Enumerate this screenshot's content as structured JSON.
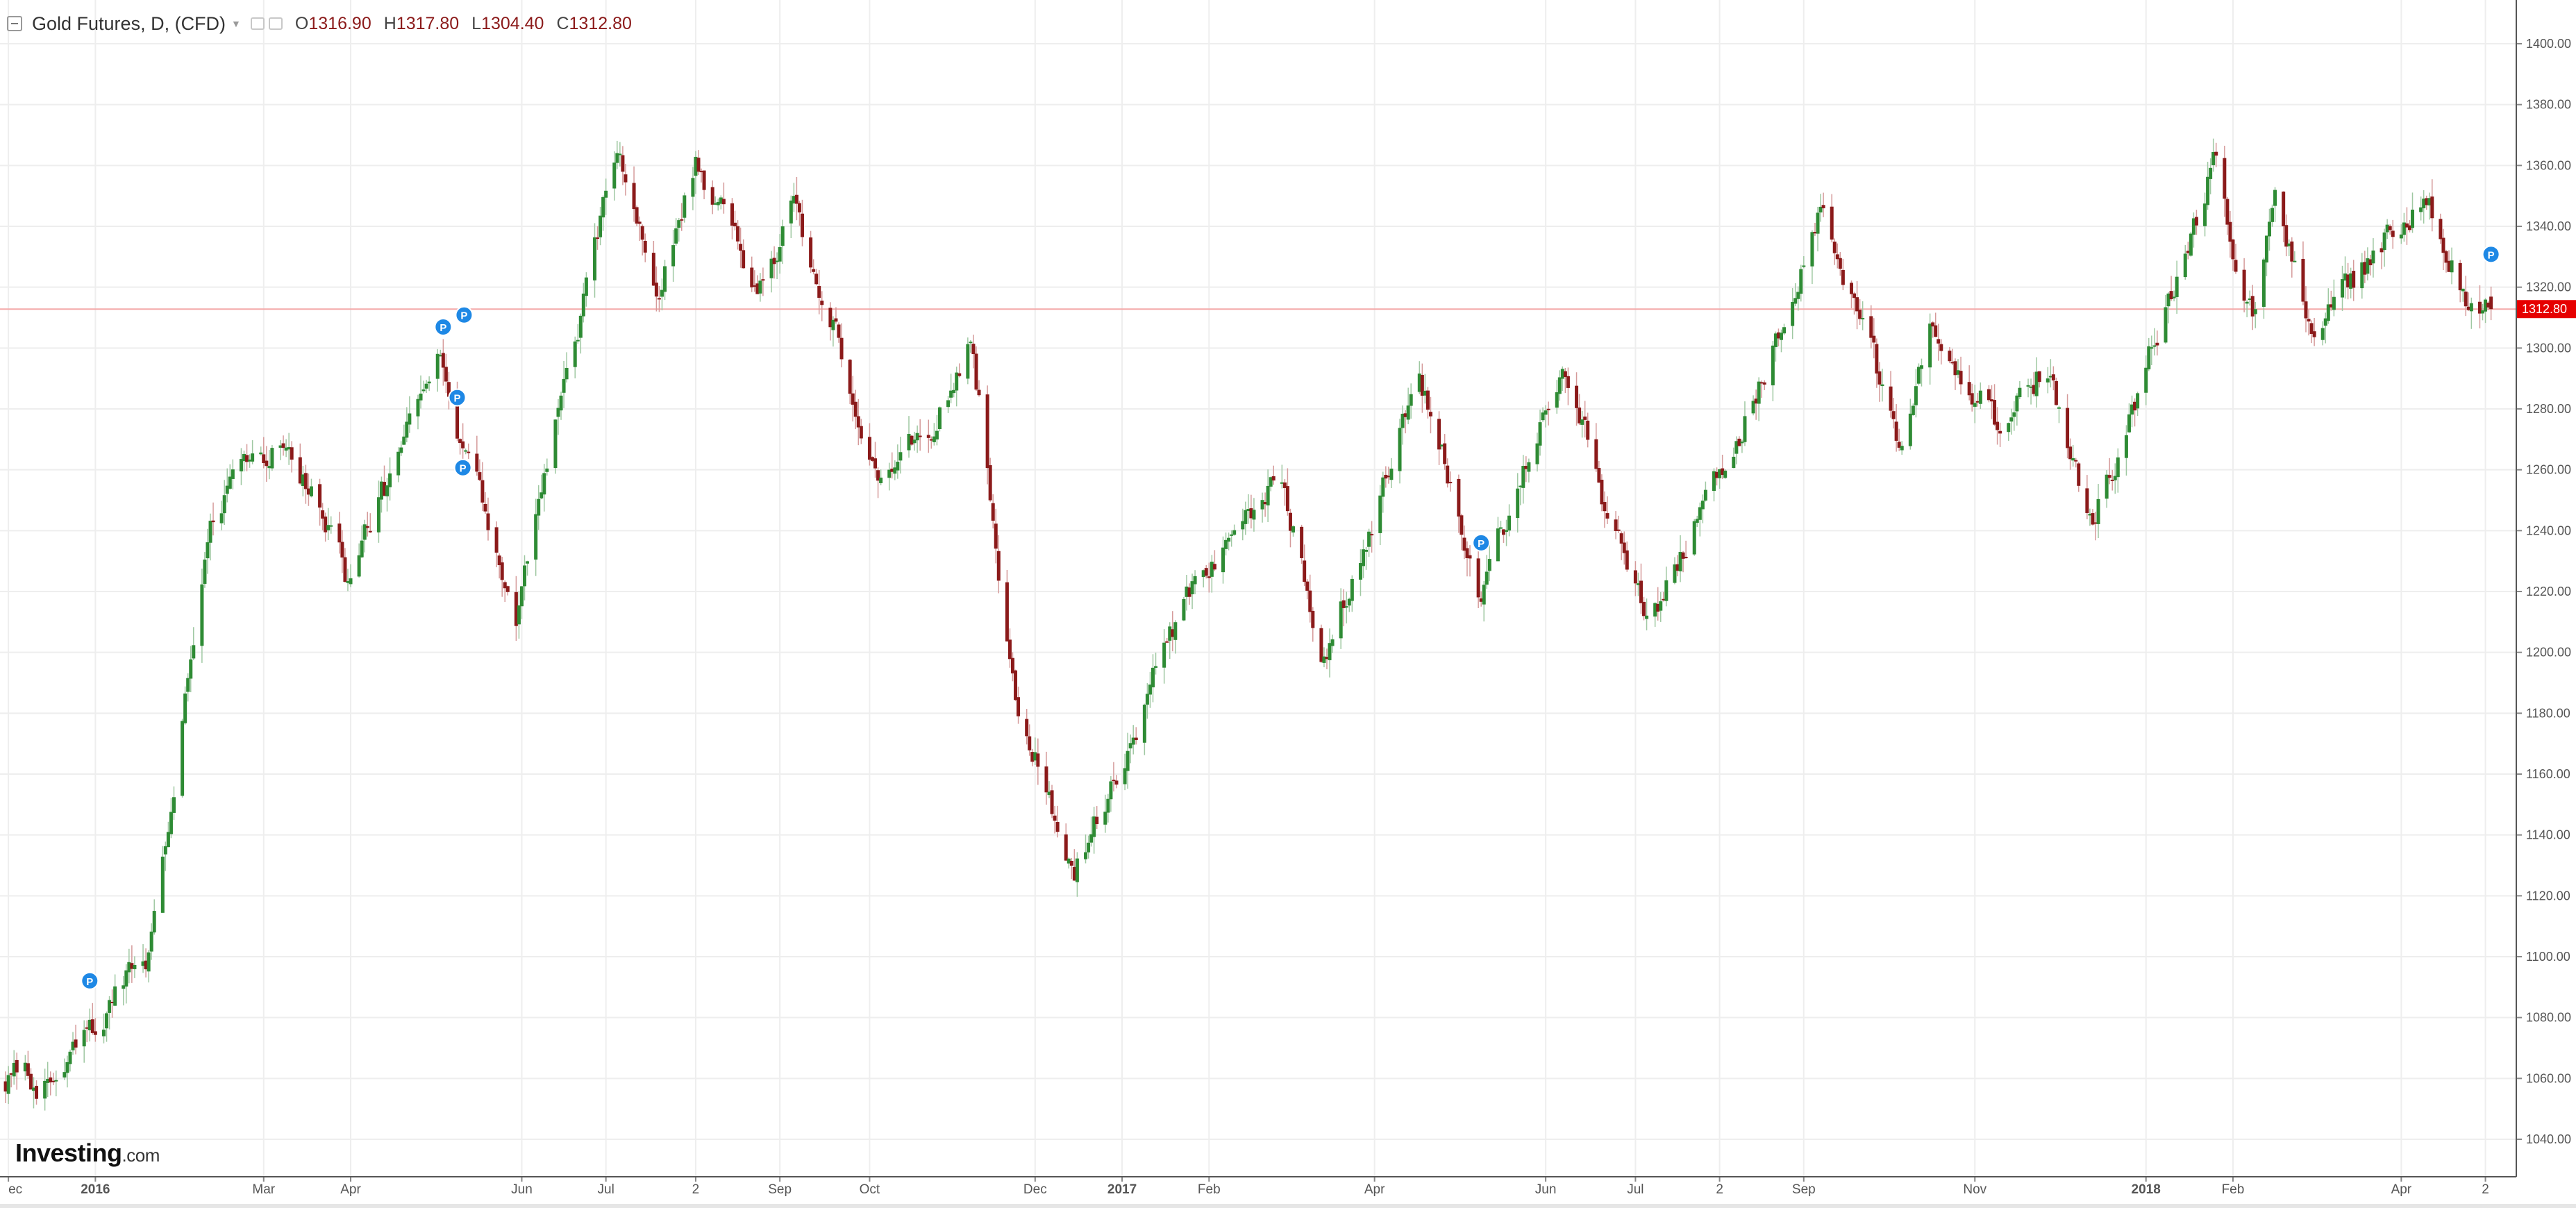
{
  "legend": {
    "symbol": "Gold Futures, D, (CFD)",
    "open_label": "O",
    "open": "1316.90",
    "high_label": "H",
    "high": "1317.80",
    "low_label": "L",
    "low": "1304.40",
    "close_label": "C",
    "close": "1312.80"
  },
  "logo": {
    "name": "Investing",
    "suffix": ".com"
  },
  "last_price_label": "1312.80",
  "colors": {
    "up": "#2e8b34",
    "down": "#8b1a1a",
    "last_price_line": "#f4a9a9",
    "last_price_bg": "#e60000",
    "marker": "#1e88e5",
    "grid": "#eeeeee"
  },
  "marker_icon": "P",
  "chart_data": {
    "type": "candlestick",
    "title": "Gold Futures, D, (CFD)",
    "ylim": [
      1030,
      1410
    ],
    "y_ticks": [
      "1040.00",
      "1060.00",
      "1080.00",
      "1100.00",
      "1120.00",
      "1140.00",
      "1160.00",
      "1180.00",
      "1200.00",
      "1220.00",
      "1240.00",
      "1260.00",
      "1280.00",
      "1300.00",
      "1320.00",
      "1340.00",
      "1360.00",
      "1380.00",
      "1400.00"
    ],
    "x_ticks": [
      "ec",
      "2016",
      "Mar",
      "Apr",
      "Jun",
      "Jul",
      "2",
      "Sep",
      "Oct",
      "Dec",
      "2017",
      "Feb",
      "Apr",
      "Jun",
      "Jul",
      "2",
      "Sep",
      "Nov",
      "2018",
      "Feb",
      "Apr",
      "2"
    ],
    "bold_x_ticks": [
      "2016",
      "2017",
      "2018"
    ],
    "last_price": 1312.8,
    "key_points": [
      {
        "date": "2015-12-03",
        "value": 1060
      },
      {
        "date": "2015-12-17",
        "value": 1058
      },
      {
        "date": "2016-01-20",
        "value": 1100
      },
      {
        "date": "2016-02-11",
        "value": 1248
      },
      {
        "date": "2016-03-10",
        "value": 1270
      },
      {
        "date": "2016-03-31",
        "value": 1223
      },
      {
        "date": "2016-05-02",
        "value": 1295
      },
      {
        "date": "2016-05-30",
        "value": 1210
      },
      {
        "date": "2016-06-24",
        "value": 1320
      },
      {
        "date": "2016-07-06",
        "value": 1366
      },
      {
        "date": "2016-07-20",
        "value": 1316
      },
      {
        "date": "2016-08-02",
        "value": 1362
      },
      {
        "date": "2016-08-24",
        "value": 1322
      },
      {
        "date": "2016-09-07",
        "value": 1346
      },
      {
        "date": "2016-10-07",
        "value": 1255
      },
      {
        "date": "2016-10-28",
        "value": 1280
      },
      {
        "date": "2016-11-08",
        "value": 1305
      },
      {
        "date": "2016-11-24",
        "value": 1185
      },
      {
        "date": "2016-12-15",
        "value": 1128
      },
      {
        "date": "2017-01-24",
        "value": 1217
      },
      {
        "date": "2017-02-27",
        "value": 1257
      },
      {
        "date": "2017-03-14",
        "value": 1198
      },
      {
        "date": "2017-04-17",
        "value": 1291
      },
      {
        "date": "2017-05-09",
        "value": 1218
      },
      {
        "date": "2017-06-06",
        "value": 1293
      },
      {
        "date": "2017-07-07",
        "value": 1210
      },
      {
        "date": "2017-08-08",
        "value": 1270
      },
      {
        "date": "2017-09-08",
        "value": 1346
      },
      {
        "date": "2017-10-06",
        "value": 1266
      },
      {
        "date": "2017-10-16",
        "value": 1303
      },
      {
        "date": "2017-11-08",
        "value": 1276
      },
      {
        "date": "2017-11-27",
        "value": 1295
      },
      {
        "date": "2017-12-12",
        "value": 1240
      },
      {
        "date": "2018-01-25",
        "value": 1360
      },
      {
        "date": "2018-02-08",
        "value": 1310
      },
      {
        "date": "2018-02-16",
        "value": 1355
      },
      {
        "date": "2018-03-01",
        "value": 1305
      },
      {
        "date": "2018-04-11",
        "value": 1352
      },
      {
        "date": "2018-04-25",
        "value": 1318
      },
      {
        "date": "2018-05-04",
        "value": 1312.8
      }
    ],
    "markers": [
      "2015-12-30",
      "2016-05-04",
      "2016-05-06",
      "2016-05-09",
      "2016-05-11",
      "2017-05-09",
      "2018-05-04"
    ]
  }
}
